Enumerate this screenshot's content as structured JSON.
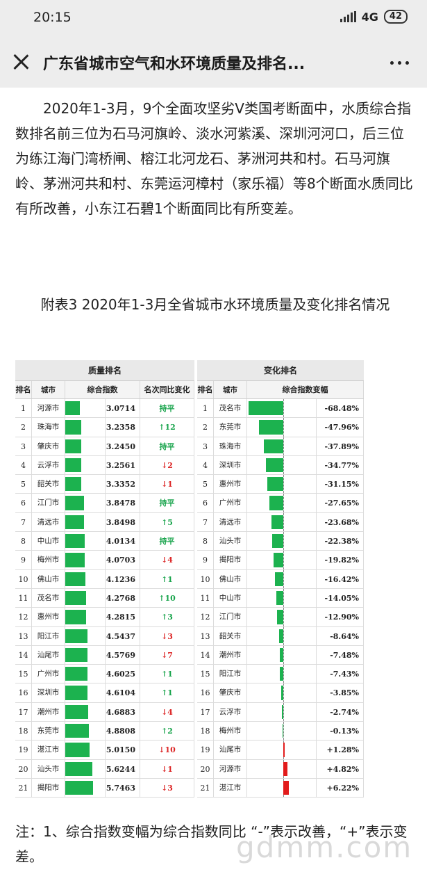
{
  "status": {
    "time": "20:15",
    "network": "4G",
    "battery": "42"
  },
  "header": {
    "title": "广东省城市空气和水环境质量及排名..."
  },
  "article": "2020年1-3月，9个全面攻坚劣V类国考断面中，水质综合指数排名前三位为石马河旗岭、淡水河紫溪、深圳河河口，后三位为练江海门湾桥闸、榕江北河龙石、茅洲河共和村。石马河旗岭、茅洲河共和村、东莞运河樟村（家乐福）等8个断面水质同比有所改善，小东江石碧1个断面同比有所变差。",
  "caption": "附表3  2020年1-3月全省城市水环境质量及变化排名情况",
  "table": {
    "left_group": "质量排名",
    "right_group": "变化排名",
    "left_cols": [
      "排名",
      "城市",
      "综合指数",
      "名次同比变化"
    ],
    "right_cols": [
      "排名",
      "城市",
      "综合指数变幅"
    ],
    "left_rows": [
      {
        "rank": "1",
        "city": "河源市",
        "value": 3.0714,
        "value_text": "3.0714",
        "change": "持平",
        "dir": "flat"
      },
      {
        "rank": "2",
        "city": "珠海市",
        "value": 3.2358,
        "value_text": "3.2358",
        "change": "↑12",
        "dir": "up"
      },
      {
        "rank": "3",
        "city": "肇庆市",
        "value": 3.245,
        "value_text": "3.2450",
        "change": "持平",
        "dir": "flat"
      },
      {
        "rank": "4",
        "city": "云浮市",
        "value": 3.2561,
        "value_text": "3.2561",
        "change": "↓2",
        "dir": "down"
      },
      {
        "rank": "5",
        "city": "韶关市",
        "value": 3.3352,
        "value_text": "3.3352",
        "change": "↓1",
        "dir": "down"
      },
      {
        "rank": "6",
        "city": "江门市",
        "value": 3.8478,
        "value_text": "3.8478",
        "change": "持平",
        "dir": "flat"
      },
      {
        "rank": "7",
        "city": "清远市",
        "value": 3.8498,
        "value_text": "3.8498",
        "change": "↑5",
        "dir": "up"
      },
      {
        "rank": "8",
        "city": "中山市",
        "value": 4.0134,
        "value_text": "4.0134",
        "change": "持平",
        "dir": "flat"
      },
      {
        "rank": "9",
        "city": "梅州市",
        "value": 4.0703,
        "value_text": "4.0703",
        "change": "↓4",
        "dir": "down"
      },
      {
        "rank": "10",
        "city": "佛山市",
        "value": 4.1236,
        "value_text": "4.1236",
        "change": "↑1",
        "dir": "up"
      },
      {
        "rank": "11",
        "city": "茂名市",
        "value": 4.2768,
        "value_text": "4.2768",
        "change": "↑10",
        "dir": "up"
      },
      {
        "rank": "12",
        "city": "惠州市",
        "value": 4.2815,
        "value_text": "4.2815",
        "change": "↑3",
        "dir": "up"
      },
      {
        "rank": "13",
        "city": "阳江市",
        "value": 4.5437,
        "value_text": "4.5437",
        "change": "↓3",
        "dir": "down"
      },
      {
        "rank": "14",
        "city": "汕尾市",
        "value": 4.5769,
        "value_text": "4.5769",
        "change": "↓7",
        "dir": "down"
      },
      {
        "rank": "15",
        "city": "广州市",
        "value": 4.6025,
        "value_text": "4.6025",
        "change": "↑1",
        "dir": "up"
      },
      {
        "rank": "16",
        "city": "深圳市",
        "value": 4.6104,
        "value_text": "4.6104",
        "change": "↑1",
        "dir": "up"
      },
      {
        "rank": "17",
        "city": "潮州市",
        "value": 4.6883,
        "value_text": "4.6883",
        "change": "↓4",
        "dir": "down"
      },
      {
        "rank": "18",
        "city": "东莞市",
        "value": 4.8808,
        "value_text": "4.8808",
        "change": "↑2",
        "dir": "up"
      },
      {
        "rank": "19",
        "city": "湛江市",
        "value": 5.015,
        "value_text": "5.0150",
        "change": "↓10",
        "dir": "down"
      },
      {
        "rank": "20",
        "city": "汕头市",
        "value": 5.6244,
        "value_text": "5.6244",
        "change": "↓1",
        "dir": "down"
      },
      {
        "rank": "21",
        "city": "揭阳市",
        "value": 5.7463,
        "value_text": "5.7463",
        "change": "↓3",
        "dir": "down"
      }
    ],
    "right_rows": [
      {
        "rank": "1",
        "city": "茂名市",
        "pct": -68.48,
        "pct_text": "-68.48%"
      },
      {
        "rank": "2",
        "city": "东莞市",
        "pct": -47.96,
        "pct_text": "-47.96%"
      },
      {
        "rank": "3",
        "city": "珠海市",
        "pct": -37.89,
        "pct_text": "-37.89%"
      },
      {
        "rank": "4",
        "city": "深圳市",
        "pct": -34.77,
        "pct_text": "-34.77%"
      },
      {
        "rank": "5",
        "city": "惠州市",
        "pct": -31.15,
        "pct_text": "-31.15%"
      },
      {
        "rank": "6",
        "city": "广州市",
        "pct": -27.65,
        "pct_text": "-27.65%"
      },
      {
        "rank": "7",
        "city": "清远市",
        "pct": -23.68,
        "pct_text": "-23.68%"
      },
      {
        "rank": "8",
        "city": "汕头市",
        "pct": -22.38,
        "pct_text": "-22.38%"
      },
      {
        "rank": "9",
        "city": "揭阳市",
        "pct": -19.82,
        "pct_text": "-19.82%"
      },
      {
        "rank": "10",
        "city": "佛山市",
        "pct": -16.42,
        "pct_text": "-16.42%"
      },
      {
        "rank": "11",
        "city": "中山市",
        "pct": -14.05,
        "pct_text": "-14.05%"
      },
      {
        "rank": "12",
        "city": "江门市",
        "pct": -12.9,
        "pct_text": "-12.90%"
      },
      {
        "rank": "13",
        "city": "韶关市",
        "pct": -8.64,
        "pct_text": "-8.64%"
      },
      {
        "rank": "14",
        "city": "潮州市",
        "pct": -7.48,
        "pct_text": "-7.48%"
      },
      {
        "rank": "15",
        "city": "阳江市",
        "pct": -7.43,
        "pct_text": "-7.43%"
      },
      {
        "rank": "16",
        "city": "肇庆市",
        "pct": -3.85,
        "pct_text": "-3.85%"
      },
      {
        "rank": "17",
        "city": "云浮市",
        "pct": -2.74,
        "pct_text": "-2.74%"
      },
      {
        "rank": "18",
        "city": "梅州市",
        "pct": -0.13,
        "pct_text": "-0.13%"
      },
      {
        "rank": "19",
        "city": "汕尾市",
        "pct": 1.28,
        "pct_text": "+1.28%"
      },
      {
        "rank": "20",
        "city": "河源市",
        "pct": 4.82,
        "pct_text": "+4.82%"
      },
      {
        "rank": "21",
        "city": "湛江市",
        "pct": 6.22,
        "pct_text": "+6.22%"
      }
    ]
  },
  "note": "注：1、综合指数变幅为综合指数同比  “-”表示改善，“+”表示变差。",
  "watermark": "gdmm.com",
  "colors": {
    "green": "#1cb24f",
    "red": "#e21b1b",
    "up": "#16a34a",
    "down": "#dc2626"
  }
}
